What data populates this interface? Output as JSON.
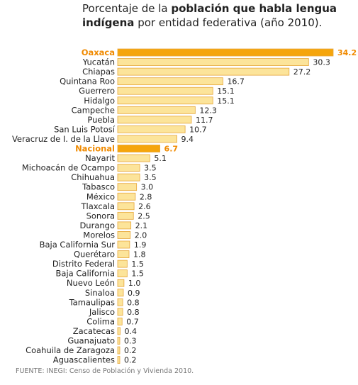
{
  "header": {
    "title_a": "Porcentaje de la ",
    "title_b": "población que habla lengua indígena",
    "title_c": " por entidad federativa (año 2010)."
  },
  "footer": {
    "source": "FUENTE: INEGI: Censo de Población y Vivienda 2010."
  },
  "colors": {
    "bar_fill": "#FCE49A",
    "bar_stroke": "#E6A63A",
    "highlight_fill": "#F5A50C",
    "highlight_text": "#F08A00",
    "label_text": "#222222"
  },
  "chart_data": {
    "type": "bar",
    "orientation": "horizontal",
    "title": "Porcentaje de la población que habla lengua indígena por entidad federativa (año 2010).",
    "xlabel": "",
    "ylabel": "",
    "xlim": [
      0,
      34.2
    ],
    "grid": false,
    "legend": "none",
    "categories": [
      "Oaxaca",
      "Yucatán",
      "Chiapas",
      "Quintana Roo",
      "Guerrero",
      "Hidalgo",
      "Campeche",
      "Puebla",
      "San Luis Potosí",
      "Veracruz de I. de la Llave",
      "Nacional",
      "Nayarit",
      "Michoacán de Ocampo",
      "Chihuahua",
      "Tabasco",
      "México",
      "Tlaxcala",
      "Sonora",
      "Durango",
      "Morelos",
      "Baja California Sur",
      "Querétaro",
      "Distrito Federal",
      "Baja California",
      "Nuevo León",
      "Sinaloa",
      "Tamaulipas",
      "Jalisco",
      "Colima",
      "Zacatecas",
      "Guanajuato",
      "Coahuila de Zaragoza",
      "Aguascalientes"
    ],
    "values": [
      34.2,
      30.3,
      27.2,
      16.7,
      15.1,
      15.1,
      12.3,
      11.7,
      10.7,
      9.4,
      6.7,
      5.1,
      3.5,
      3.5,
      3.0,
      2.8,
      2.6,
      2.5,
      2.1,
      2.0,
      1.9,
      1.8,
      1.5,
      1.5,
      1.0,
      0.9,
      0.8,
      0.8,
      0.7,
      0.4,
      0.3,
      0.2,
      0.2
    ],
    "value_labels": [
      "34.2",
      "30.3",
      "27.2",
      "16.7",
      "15.1",
      "15.1",
      "12.3",
      "11.7",
      "10.7",
      "9.4",
      "6.7",
      "5.1",
      "3.5",
      "3.5",
      "3.0",
      "2.8",
      "2.6",
      "2.5",
      "2.1",
      "2.0",
      "1.9",
      "1.8",
      "1.5",
      "1.5",
      "1.0",
      "0.9",
      "0.8",
      "0.8",
      "0.7",
      "0.4",
      "0.3",
      "0.2",
      "0.2"
    ],
    "highlighted": [
      "Oaxaca",
      "Nacional"
    ]
  }
}
